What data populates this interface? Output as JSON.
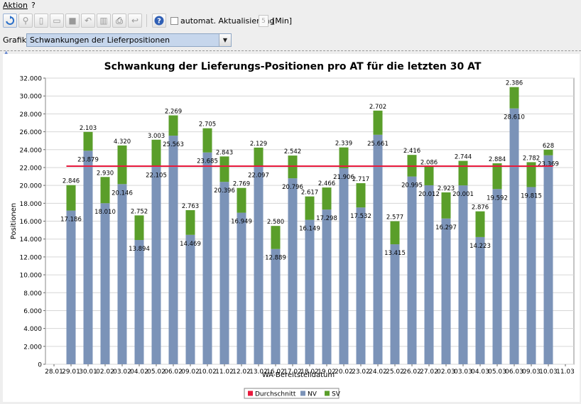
{
  "menubar": {
    "items": [
      {
        "label": "Aktion"
      },
      {
        "label": "?"
      }
    ]
  },
  "toolbar": {
    "auto_update_label": "automat. Aktualisierung",
    "interval_value": "5",
    "interval_unit": "[Min]"
  },
  "grafik": {
    "label": "Grafik",
    "selected": "Schwankungen der Lieferpositionen"
  },
  "colors": {
    "nv": "#7b93b8",
    "sv": "#5a9e2a",
    "avg": "#e8193c",
    "select_bg": "#c6d6ec"
  },
  "chart_data": {
    "type": "bar",
    "stacked": true,
    "title": "Schwankung der Lieferungs-Positionen pro AT für die letzten 30 AT",
    "xlabel": "WA-Bereitstelldatum",
    "ylabel": "Positionen",
    "ylim": [
      0,
      32000
    ],
    "y_ticks": [
      "0",
      "2.000",
      "4.000",
      "6.000",
      "8.000",
      "10.000",
      "12.000",
      "14.000",
      "16.000",
      "18.000",
      "20.000",
      "22.000",
      "24.000",
      "26.000",
      "28.000",
      "30.000",
      "32.000"
    ],
    "x_ticks": [
      "28.01",
      "29.01",
      "30.01",
      "02.02",
      "03.02",
      "04.02",
      "05.02",
      "06.02",
      "09.02",
      "10.02",
      "11.02",
      "12.02",
      "13.02",
      "16.02",
      "17.02",
      "18.02",
      "19.02",
      "20.02",
      "23.02",
      "24.02",
      "25.02",
      "26.02",
      "27.02",
      "02.03",
      "03.03",
      "04.03",
      "05.03",
      "06.03",
      "09.03",
      "10.03",
      "11.03"
    ],
    "categories": [
      "29.01",
      "30.01",
      "02.02",
      "03.02",
      "04.02",
      "05.02",
      "06.02",
      "09.02",
      "10.02",
      "11.02",
      "12.02",
      "13.02",
      "16.02",
      "17.02",
      "18.02",
      "19.02",
      "20.02",
      "23.02",
      "24.02",
      "25.02",
      "26.02",
      "27.02",
      "02.03",
      "03.03",
      "04.03",
      "05.03",
      "06.03",
      "09.03",
      "10.03"
    ],
    "series": [
      {
        "name": "NV",
        "values": [
          17186,
          23879,
          18010,
          20146,
          13894,
          22105,
          25563,
          14469,
          23685,
          20396,
          16949,
          22097,
          12889,
          20796,
          16149,
          17298,
          21906,
          17532,
          25661,
          13415,
          20995,
          20012,
          16297,
          20001,
          14223,
          19592,
          28610,
          19815,
          23369
        ],
        "labels": [
          "17.186",
          "23.879",
          "18.010",
          "20.146",
          "13.894",
          "22.105",
          "25.563",
          "14.469",
          "23.685",
          "20.396",
          "16.949",
          "22.097",
          "12.889",
          "20.796",
          "16.149",
          "17.298",
          "21.906",
          "17.532",
          "25.661",
          "13.415",
          "20.995",
          "20.012",
          "16.297",
          "20.001",
          "14.223",
          "19.592",
          "28.610",
          "19.815",
          "23.369"
        ]
      },
      {
        "name": "SV",
        "values": [
          2846,
          2103,
          2930,
          4320,
          2752,
          3003,
          2269,
          2763,
          2705,
          2843,
          2769,
          2129,
          2580,
          2542,
          2617,
          2466,
          2339,
          2717,
          2702,
          2577,
          2416,
          2086,
          2923,
          2744,
          2876,
          2884,
          2386,
          2782,
          628
        ],
        "labels": [
          "2.846",
          "2.103",
          "2.930",
          "4.320",
          "2.752",
          "3.003",
          "2.269",
          "2.763",
          "2.705",
          "2.843",
          "2.769",
          "2.129",
          "2.580",
          "2.542",
          "2.617",
          "2.466",
          "2.339",
          "2.717",
          "2.702",
          "2.577",
          "2.416",
          "2.086",
          "2.923",
          "2.744",
          "2.876",
          "2.884",
          "2.386",
          "2.782",
          "628"
        ]
      }
    ],
    "average": {
      "name": "Durchschnitt",
      "value": 22150
    },
    "legend": {
      "placement": "bottom-center",
      "items": [
        "Durchschnitt",
        "NV",
        "SV"
      ]
    },
    "grid": true
  }
}
